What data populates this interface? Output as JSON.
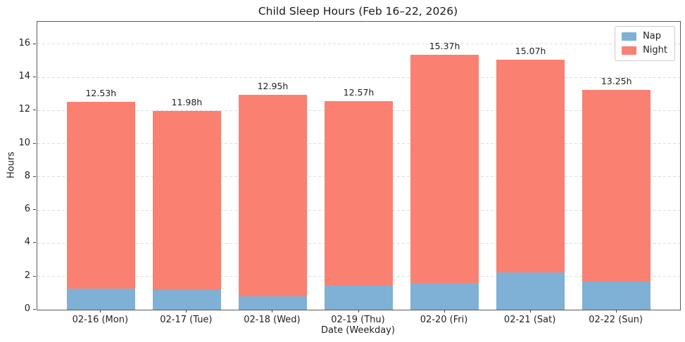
{
  "figure": {
    "title": "Child Sleep Hours (Feb 16–22, 2026)"
  },
  "chart_data": {
    "type": "bar",
    "stacked": true,
    "title": "Child Sleep Hours (Feb 16–22, 2026)",
    "xlabel": "Date (Weekday)",
    "ylabel": "Hours",
    "categories": [
      "02-16 (Mon)",
      "02-17 (Tue)",
      "02-18 (Wed)",
      "02-19 (Thu)",
      "02-20 (Fri)",
      "02-21 (Sat)",
      "02-22 (Sun)"
    ],
    "series": [
      {
        "name": "Nap",
        "color": "#7EB1D5",
        "values": [
          1.25,
          1.2,
          0.8,
          1.5,
          1.6,
          2.25,
          1.7
        ]
      },
      {
        "name": "Night",
        "color": "#FA8072",
        "values": [
          11.28,
          10.78,
          12.15,
          11.07,
          13.77,
          12.82,
          11.55
        ]
      }
    ],
    "totals": [
      12.53,
      11.98,
      12.95,
      12.57,
      15.37,
      15.07,
      13.25
    ],
    "total_labels": [
      "12.53h",
      "11.98h",
      "12.95h",
      "12.57h",
      "15.37h",
      "15.07h",
      "13.25h"
    ],
    "yticks": [
      0,
      2,
      4,
      6,
      8,
      10,
      12,
      14,
      16
    ],
    "ylim": [
      0,
      17.35
    ],
    "grid": "horizontal-dashed",
    "legend_position": "upper-right"
  }
}
